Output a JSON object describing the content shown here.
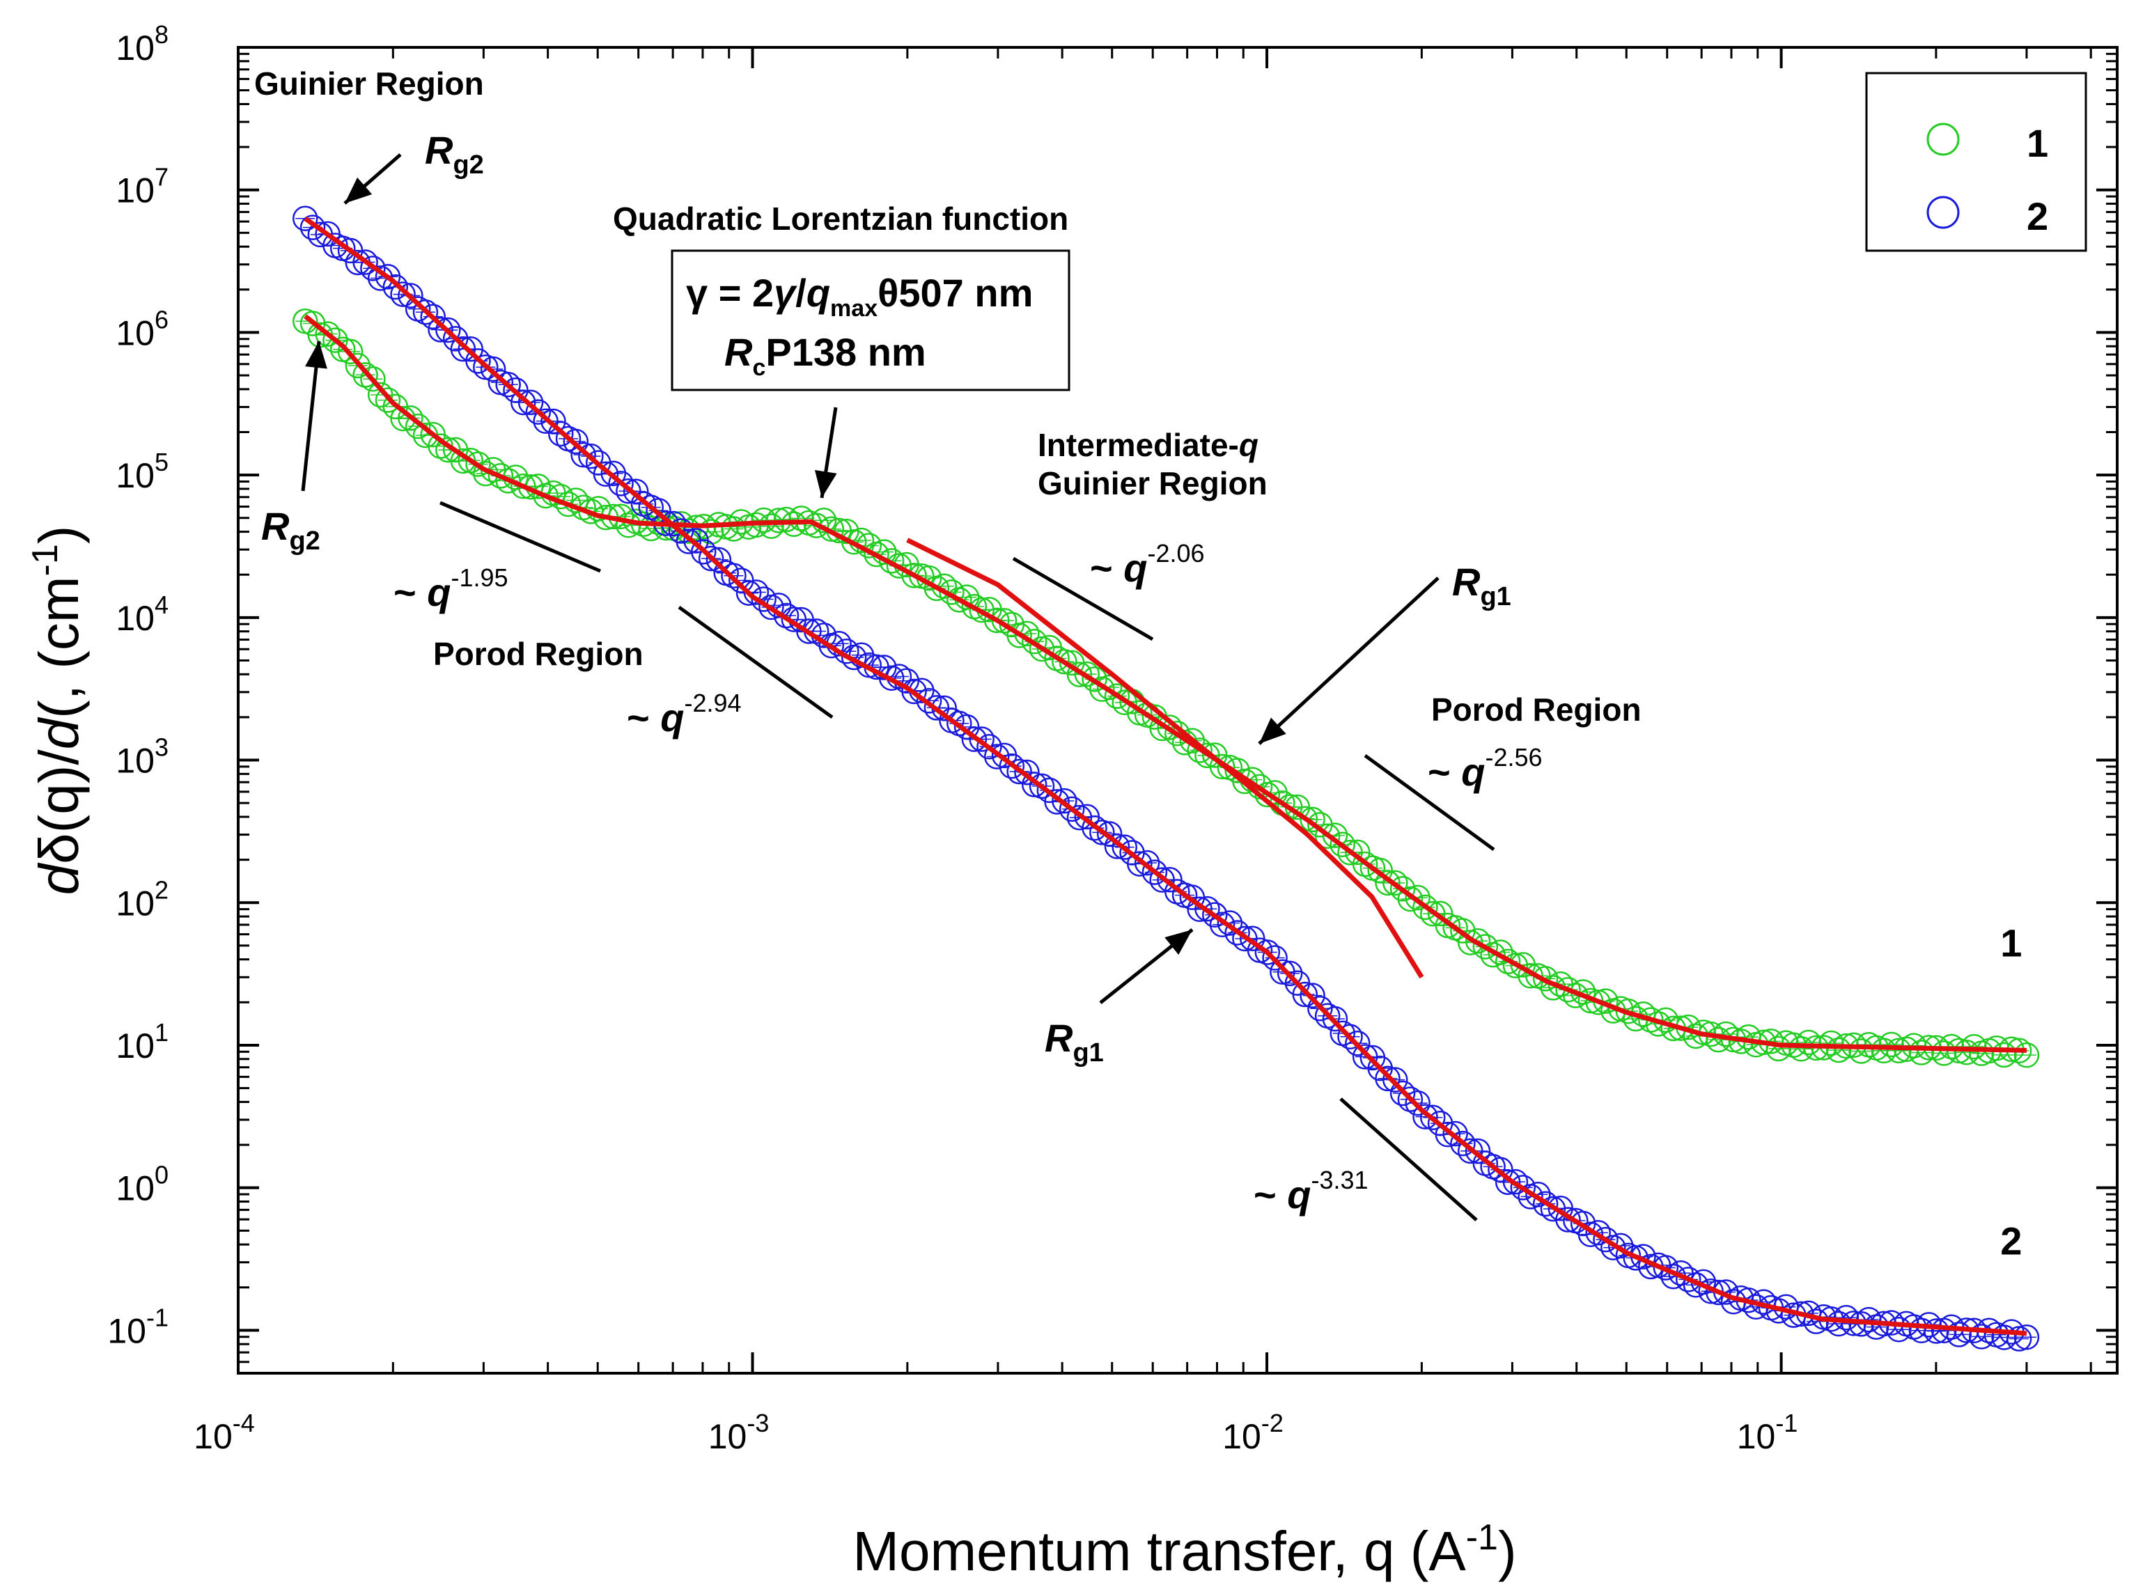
{
  "chart_data": {
    "type": "scatter",
    "xscale": "log",
    "yscale": "log",
    "xlim": [
      0.0001,
      0.45
    ],
    "ylim": [
      0.05,
      100000000
    ],
    "xlabel": "Momentum transfer, q (A",
    "xlabel_sup": "-1",
    "xlabel_end": ")",
    "ylabel_parts": {
      "d1": "d",
      "sym1": "δ",
      "mid": "(q)/",
      "d2": "d",
      "sym2": "(",
      "rest": ", (cm",
      "sup": "-1",
      "end": ")"
    },
    "x_ticks": [
      {
        "value": 0.0001,
        "base": "10",
        "exp": "-4"
      },
      {
        "value": 0.001,
        "base": "10",
        "exp": "-3"
      },
      {
        "value": 0.01,
        "base": "10",
        "exp": "-2"
      },
      {
        "value": 0.1,
        "base": "10",
        "exp": "-1"
      }
    ],
    "y_ticks": [
      {
        "value": 0.1,
        "base": "10",
        "exp": "-1"
      },
      {
        "value": 1,
        "base": "10",
        "exp": "0"
      },
      {
        "value": 10,
        "base": "10",
        "exp": "1"
      },
      {
        "value": 100,
        "base": "10",
        "exp": "2"
      },
      {
        "value": 1000,
        "base": "10",
        "exp": "3"
      },
      {
        "value": 10000,
        "base": "10",
        "exp": "4"
      },
      {
        "value": 100000,
        "base": "10",
        "exp": "5"
      },
      {
        "value": 1000000,
        "base": "10",
        "exp": "6"
      },
      {
        "value": 10000000,
        "base": "10",
        "exp": "7"
      },
      {
        "value": 100000000,
        "base": "10",
        "exp": "8"
      }
    ],
    "series": [
      {
        "name": "1",
        "color": "#22cc22",
        "marker": "open-circle",
        "anchors": [
          [
            0.000135,
            1200000
          ],
          [
            0.00016,
            800000
          ],
          [
            0.0002,
            300000
          ],
          [
            0.00025,
            160000
          ],
          [
            0.0003,
            110000
          ],
          [
            0.0004,
            75000
          ],
          [
            0.0005,
            55000
          ],
          [
            0.0006,
            45000
          ],
          [
            0.0008,
            42000
          ],
          [
            0.001,
            45000
          ],
          [
            0.0012,
            48000
          ],
          [
            0.0014,
            45000
          ],
          [
            0.0016,
            35000
          ],
          [
            0.002,
            22000
          ],
          [
            0.003,
            10000
          ],
          [
            0.005,
            3000
          ],
          [
            0.008,
            1000
          ],
          [
            0.012,
            400
          ],
          [
            0.017,
            150
          ],
          [
            0.025,
            55
          ],
          [
            0.035,
            28
          ],
          [
            0.05,
            17
          ],
          [
            0.07,
            12
          ],
          [
            0.1,
            10
          ],
          [
            0.3,
            9
          ]
        ]
      },
      {
        "name": "2",
        "color": "#1a1add",
        "marker": "open-circle",
        "anchors": [
          [
            0.000135,
            6000000
          ],
          [
            0.0002,
            2200000
          ],
          [
            0.0003,
            600000
          ],
          [
            0.0005,
            120000
          ],
          [
            0.0008,
            30000
          ],
          [
            0.001,
            15000
          ],
          [
            0.0015,
            6000
          ],
          [
            0.002,
            3500
          ],
          [
            0.003,
            1100
          ],
          [
            0.005,
            280
          ],
          [
            0.007,
            110
          ],
          [
            0.01,
            45
          ],
          [
            0.015,
            10
          ],
          [
            0.02,
            3.5
          ],
          [
            0.03,
            1.1
          ],
          [
            0.05,
            0.35
          ],
          [
            0.08,
            0.17
          ],
          [
            0.12,
            0.12
          ],
          [
            0.3,
            0.09
          ]
        ]
      }
    ],
    "fits": [
      {
        "name": "fit-1",
        "color": "#e01010",
        "points": [
          [
            0.000135,
            1300000
          ],
          [
            0.00016,
            800000
          ],
          [
            0.0002,
            320000
          ],
          [
            0.00025,
            170000
          ],
          [
            0.0003,
            110000
          ],
          [
            0.0004,
            70000
          ],
          [
            0.0005,
            52000
          ],
          [
            0.0006,
            46000
          ],
          [
            0.0008,
            44000
          ],
          [
            0.001,
            46000
          ],
          [
            0.0013,
            47000
          ],
          [
            0.0016,
            32000
          ],
          [
            0.002,
            21000
          ],
          [
            0.003,
            9500
          ],
          [
            0.005,
            3000
          ],
          [
            0.008,
            1000
          ],
          [
            0.012,
            380
          ],
          [
            0.017,
            150
          ],
          [
            0.025,
            55
          ],
          [
            0.035,
            28
          ],
          [
            0.05,
            17
          ],
          [
            0.07,
            12
          ],
          [
            0.1,
            10
          ],
          [
            0.3,
            9.2
          ]
        ]
      },
      {
        "name": "fit-1-intermediate",
        "color": "#e01010",
        "points": [
          [
            0.002,
            35000
          ],
          [
            0.003,
            17000
          ],
          [
            0.005,
            4000
          ],
          [
            0.008,
            1000
          ],
          [
            0.012,
            300
          ],
          [
            0.016,
            110
          ],
          [
            0.02,
            30
          ]
        ]
      },
      {
        "name": "fit-2",
        "color": "#e01010",
        "points": [
          [
            0.000135,
            6300000
          ],
          [
            0.0002,
            2300000
          ],
          [
            0.0003,
            600000
          ],
          [
            0.0005,
            120000
          ],
          [
            0.0008,
            30000
          ],
          [
            0.001,
            14000
          ],
          [
            0.0015,
            5500
          ],
          [
            0.002,
            3200
          ],
          [
            0.003,
            1100
          ],
          [
            0.005,
            280
          ],
          [
            0.007,
            110
          ],
          [
            0.01,
            45
          ],
          [
            0.015,
            10
          ],
          [
            0.02,
            3.5
          ],
          [
            0.03,
            1.1
          ],
          [
            0.05,
            0.35
          ],
          [
            0.08,
            0.17
          ],
          [
            0.12,
            0.12
          ],
          [
            0.3,
            0.095
          ]
        ]
      }
    ],
    "legend": {
      "position": "top-right",
      "entries": [
        {
          "label": "1",
          "color": "#22cc22"
        },
        {
          "label": "2",
          "color": "#1a1add"
        }
      ]
    },
    "curve_labels": [
      {
        "text": "1",
        "x": 0.28,
        "y": 42
      },
      {
        "text": "2",
        "x": 0.28,
        "y": 0.34
      }
    ],
    "annotations": {
      "guinier_region": "Guinier Region",
      "quadratic_lorentzian": "Quadratic Lorentzian function",
      "box_line1": {
        "gamma": "γ = 2",
        "gamma2": "γ",
        "slash": "/",
        "q": "q",
        "sub": "max",
        "rest": "θ507 nm"
      },
      "box_line2": {
        "R": "R",
        "sub": "c",
        "rest": "P138 nm"
      },
      "intermediate_q_1": "Intermediate-",
      "intermediate_q_q": "q",
      "intermediate_q_2": "Guinier Region",
      "porod_left": "Porod Region",
      "porod_right": "Porod Region",
      "rg2_top": {
        "R": "R",
        "sub": "g2"
      },
      "rg2_left": {
        "R": "R",
        "sub": "g2"
      },
      "rg1_right": {
        "R": "R",
        "sub": "g1"
      },
      "rg1_bottom": {
        "R": "R",
        "sub": "g1"
      },
      "slopes": [
        {
          "prefix": "~ ",
          "q": "q",
          "exp": "-1.95"
        },
        {
          "prefix": "~ ",
          "q": "q",
          "exp": "-2.94"
        },
        {
          "prefix": "~ ",
          "q": "q",
          "exp": "-2.06"
        },
        {
          "prefix": "~ ",
          "q": "q",
          "exp": "-2.56"
        },
        {
          "prefix": "~ ",
          "q": "q",
          "exp": "-3.31"
        }
      ]
    }
  }
}
